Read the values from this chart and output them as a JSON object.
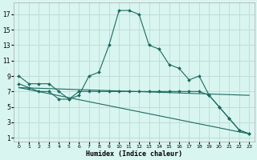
{
  "xlabel": "Humidex (Indice chaleur)",
  "ylabel": "",
  "background_color": "#d9f5f0",
  "grid_color": "#c0ddd8",
  "line_color": "#1a6b60",
  "xlim": [
    -0.5,
    23.5
  ],
  "ylim": [
    0.5,
    18.5
  ],
  "xticks": [
    0,
    1,
    2,
    3,
    4,
    5,
    6,
    7,
    8,
    9,
    10,
    11,
    12,
    13,
    14,
    15,
    16,
    17,
    18,
    19,
    20,
    21,
    22,
    23
  ],
  "yticks": [
    1,
    3,
    5,
    7,
    9,
    11,
    13,
    15,
    17
  ],
  "series": [
    {
      "x": [
        0,
        1,
        2,
        3,
        4,
        5,
        6,
        7,
        8,
        9,
        10,
        11,
        12,
        13,
        14,
        15,
        16,
        17,
        18,
        19,
        20,
        21,
        22,
        23
      ],
      "y": [
        9,
        8,
        8,
        8,
        7,
        6,
        6.5,
        9,
        9.5,
        13,
        17.5,
        17.5,
        17,
        13,
        12.5,
        10.5,
        10,
        8.5,
        9,
        6.5,
        5,
        3.5,
        2,
        1.5
      ],
      "marker": true
    },
    {
      "x": [
        0,
        1,
        2,
        3,
        4,
        5,
        6,
        7,
        8,
        9,
        10,
        11,
        12,
        13,
        14,
        15,
        16,
        17,
        18,
        19,
        20,
        21,
        22,
        23
      ],
      "y": [
        8,
        7.5,
        7,
        7,
        6,
        6,
        7,
        7,
        7,
        7,
        7,
        7,
        7,
        7,
        7,
        7,
        7,
        7,
        7,
        6.5,
        5,
        3.5,
        2,
        1.5
      ],
      "marker": true
    },
    {
      "x": [
        0,
        23
      ],
      "y": [
        7.5,
        6.5
      ],
      "marker": false
    },
    {
      "x": [
        0,
        23
      ],
      "y": [
        7.5,
        1.5
      ],
      "marker": false
    }
  ]
}
